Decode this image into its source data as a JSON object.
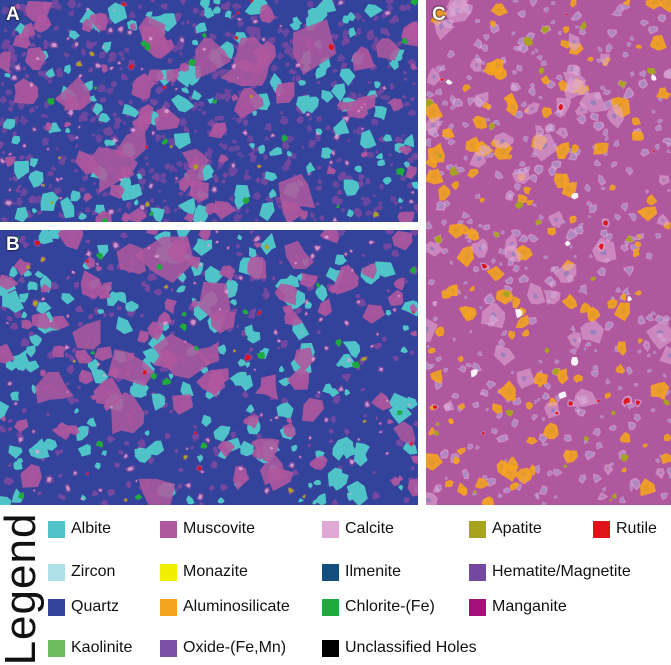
{
  "panels": [
    {
      "label": "A"
    },
    {
      "label": "B"
    },
    {
      "label": "C"
    }
  ],
  "legend": {
    "title": "Legend",
    "items": [
      {
        "label": "Albite",
        "color": "#4fc3c8"
      },
      {
        "label": "Muscovite",
        "color": "#b0589e"
      },
      {
        "label": "Calcite",
        "color": "#e0a8d4"
      },
      {
        "label": "Apatite",
        "color": "#a7a321"
      },
      {
        "label": "Rutile",
        "color": "#e0131b"
      },
      {
        "label": "Zircon",
        "color": "#aee0ea"
      },
      {
        "label": "Monazite",
        "color": "#f2ee00"
      },
      {
        "label": "Ilmenite",
        "color": "#124f7e"
      },
      {
        "label": "Hematite/Magnetite",
        "color": "#7448a0"
      },
      {
        "label": "Quartz",
        "color": "#33429a"
      },
      {
        "label": "Aluminosilicate",
        "color": "#f5a41f"
      },
      {
        "label": "Chlorite-(Fe)",
        "color": "#1eab3e"
      },
      {
        "label": "Manganite",
        "color": "#a4117a"
      },
      {
        "label": "Kaolinite",
        "color": "#6cbd5e"
      },
      {
        "label": "Oxide-(Fe,Mn)",
        "color": "#7b4fa6"
      },
      {
        "label": "Unclassified Holes",
        "color": "#000000"
      }
    ]
  }
}
